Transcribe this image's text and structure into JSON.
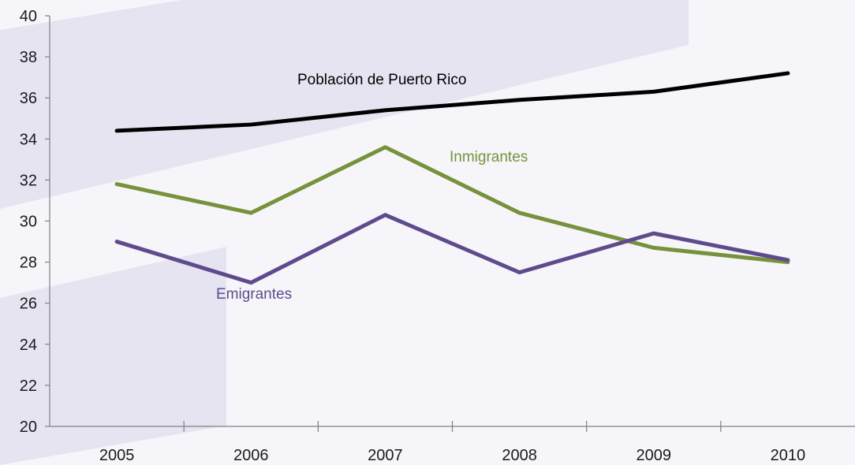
{
  "chart_data": {
    "type": "line",
    "categories": [
      "2005",
      "2006",
      "2007",
      "2008",
      "2009",
      "2010"
    ],
    "ylim": [
      20,
      40
    ],
    "yticks": [
      20,
      22,
      24,
      26,
      28,
      30,
      32,
      34,
      36,
      38,
      40
    ],
    "grid": false,
    "series": [
      {
        "name": "Población de Puerto Rico",
        "color": "#000000",
        "values": [
          34.4,
          34.7,
          35.4,
          35.9,
          36.3,
          37.2
        ]
      },
      {
        "name": "Inmigrantes",
        "color": "#76923c",
        "values": [
          31.8,
          30.4,
          33.6,
          30.4,
          28.7,
          28.0
        ]
      },
      {
        "name": "Emigrantes",
        "color": "#5f4b8b",
        "values": [
          29.0,
          27.0,
          30.3,
          27.5,
          29.4,
          28.1
        ]
      }
    ]
  }
}
